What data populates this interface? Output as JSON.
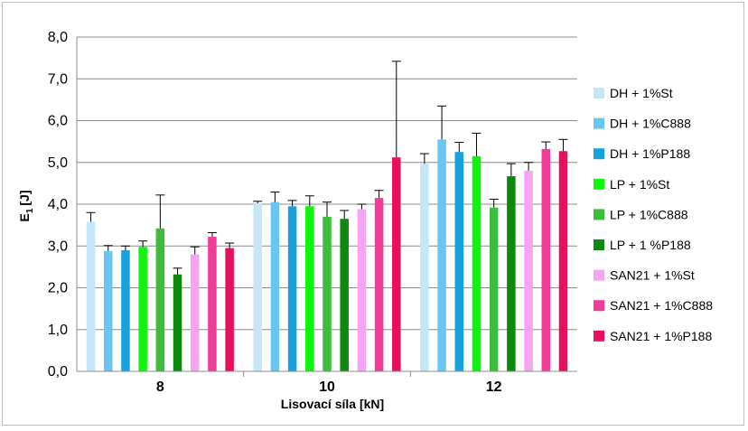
{
  "chart_data": {
    "type": "bar",
    "xlabel": "Lisovací síla [kN]",
    "ylabel_main": "E",
    "ylabel_sub": "1",
    "ylabel_unit": "[J]",
    "ylim": [
      0,
      8
    ],
    "yticks": [
      "0,0",
      "1,0",
      "2,0",
      "3,0",
      "4,0",
      "5,0",
      "6,0",
      "7,0",
      "8,0"
    ],
    "grid": true,
    "legend_position": "right",
    "error_bars": true,
    "categories": [
      "8",
      "10",
      "12"
    ],
    "series": [
      {
        "name": "DH + 1%St",
        "color": "#c5e6f6",
        "values": [
          3.58,
          4.02,
          4.97
        ],
        "errors": [
          0.22,
          0.05,
          0.24
        ]
      },
      {
        "name": "DH + 1%C888",
        "color": "#6ac6f0",
        "values": [
          2.88,
          4.05,
          5.55
        ],
        "errors": [
          0.13,
          0.24,
          0.8
        ]
      },
      {
        "name": "DH + 1%P188",
        "color": "#17a2de",
        "values": [
          2.9,
          3.95,
          5.25
        ],
        "errors": [
          0.1,
          0.14,
          0.23
        ]
      },
      {
        "name": "LP + 1%St",
        "color": "#0df50d",
        "values": [
          2.98,
          3.95,
          5.15
        ],
        "errors": [
          0.14,
          0.25,
          0.55
        ]
      },
      {
        "name": "LP + 1%C888",
        "color": "#3cbe3c",
        "values": [
          3.42,
          3.7,
          3.92
        ],
        "errors": [
          0.8,
          0.35,
          0.2
        ]
      },
      {
        "name": "LP + 1 %P188",
        "color": "#0d8a0d",
        "values": [
          2.32,
          3.65,
          4.67
        ],
        "errors": [
          0.15,
          0.2,
          0.3
        ]
      },
      {
        "name": "SAN21 + 1%St",
        "color": "#f4a4f0",
        "values": [
          2.8,
          3.88,
          4.8
        ],
        "errors": [
          0.18,
          0.12,
          0.2
        ]
      },
      {
        "name": "SAN21 + 1%C888",
        "color": "#f03c96",
        "values": [
          3.22,
          4.15,
          5.32
        ],
        "errors": [
          0.1,
          0.18,
          0.17
        ]
      },
      {
        "name": "SAN21 + 1%P188",
        "color": "#e8105e",
        "values": [
          2.95,
          5.12,
          5.27
        ],
        "errors": [
          0.12,
          2.3,
          0.28
        ]
      }
    ]
  }
}
